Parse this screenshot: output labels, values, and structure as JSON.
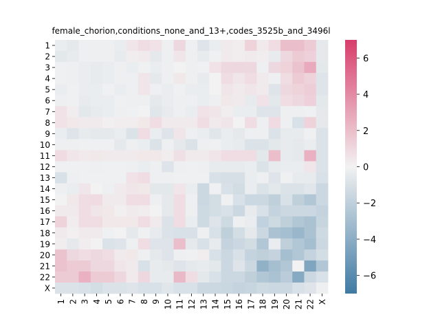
{
  "chart_data": {
    "type": "heatmap",
    "title": "female_chorion,conditions_none_and_13+,codes_3525b_and_3496l",
    "row_labels": [
      "1",
      "2",
      "3",
      "4",
      "5",
      "6",
      "7",
      "8",
      "9",
      "10",
      "11",
      "12",
      "13",
      "14",
      "15",
      "16",
      "17",
      "18",
      "19",
      "20",
      "21",
      "22",
      "X"
    ],
    "col_labels": [
      "1",
      "2",
      "3",
      "4",
      "5",
      "6",
      "7",
      "8",
      "9",
      "10",
      "11",
      "12",
      "13",
      "14",
      "15",
      "16",
      "17",
      "18",
      "19",
      "20",
      "21",
      "22",
      "X"
    ],
    "colorbar": {
      "min": -7,
      "max": 7,
      "ticks": [
        -6,
        -4,
        -2,
        0,
        2,
        4,
        6
      ],
      "low_color": "#3f7aa3",
      "mid_color": "#f2f2f2",
      "high_color": "#d83d6b"
    },
    "values": [
      [
        -0.3,
        -0.5,
        -0.2,
        -0.2,
        -0.2,
        -0.3,
        0.5,
        0.8,
        0.6,
        -0.2,
        1.0,
        -0.2,
        -0.8,
        -0.3,
        0.3,
        0.2,
        1.2,
        0.3,
        0.8,
        2.0,
        2.0,
        1.5,
        -0.5
      ],
      [
        -0.6,
        -0.4,
        -0.2,
        -0.2,
        -0.2,
        -0.4,
        0.2,
        0.3,
        -0.5,
        -0.2,
        0.5,
        -0.2,
        -0.4,
        -0.1,
        0.3,
        0.2,
        0.3,
        0.2,
        -0.4,
        1.0,
        1.5,
        1.3,
        -0.5
      ],
      [
        -0.1,
        -0.2,
        -0.3,
        -0.4,
        -0.3,
        -0.2,
        -0.3,
        -0.1,
        -0.3,
        -0.2,
        0.0,
        -0.2,
        -0.1,
        0.6,
        1.0,
        1.0,
        1.0,
        -0.2,
        1.0,
        1.2,
        1.8,
        2.8,
        -0.6
      ],
      [
        -0.1,
        -0.2,
        -0.3,
        -0.4,
        -0.3,
        -0.2,
        -0.2,
        0.5,
        -0.5,
        -0.2,
        0.4,
        -0.2,
        -0.4,
        0.0,
        0.8,
        0.5,
        0.8,
        0.3,
        -0.2,
        0.8,
        1.5,
        1.2,
        -0.8
      ],
      [
        -0.3,
        -0.1,
        -0.3,
        -0.3,
        -0.1,
        -0.3,
        -0.2,
        0.5,
        -0.2,
        -0.3,
        -0.1,
        -0.3,
        -0.3,
        0.0,
        0.5,
        0.3,
        0.5,
        0.3,
        -0.8,
        1.0,
        1.2,
        1.4,
        -0.8
      ],
      [
        -0.2,
        -0.1,
        -0.4,
        -0.3,
        -0.3,
        -0.1,
        -0.2,
        -0.2,
        -0.5,
        -0.3,
        -0.2,
        -0.2,
        -0.3,
        -0.2,
        0.4,
        0.3,
        -0.4,
        0.6,
        -0.6,
        0.8,
        1.0,
        1.3,
        -0.6
      ],
      [
        0.6,
        0.2,
        -0.6,
        -0.4,
        -0.3,
        -0.2,
        -0.1,
        0.0,
        -0.7,
        -0.4,
        -0.2,
        -0.3,
        0.6,
        0.5,
        0.2,
        -0.3,
        -0.3,
        -0.8,
        -0.8,
        -0.2,
        -0.2,
        -0.1,
        -0.5
      ],
      [
        0.6,
        0.4,
        0.3,
        0.3,
        0.1,
        0.2,
        0.2,
        0.4,
        0.8,
        0.3,
        0.3,
        0.3,
        0.8,
        0.3,
        0.5,
        0.0,
        0.8,
        -0.2,
        0.9,
        -0.2,
        -1.0,
        1.2,
        -0.5
      ],
      [
        -0.3,
        -0.8,
        -0.4,
        -0.5,
        -0.5,
        -0.3,
        -0.9,
        0.8,
        -0.3,
        -0.8,
        0.5,
        -0.2,
        -0.3,
        -0.7,
        -0.3,
        -0.5,
        -0.2,
        -0.2,
        -0.9,
        -0.4,
        -0.4,
        -0.1,
        -0.9
      ],
      [
        -0.2,
        -0.2,
        -0.1,
        -0.1,
        -0.1,
        -0.5,
        -0.2,
        -0.3,
        -0.9,
        -0.2,
        -0.5,
        -0.9,
        -0.2,
        -0.1,
        -0.3,
        -0.4,
        -0.9,
        -0.9,
        -0.6,
        -0.4,
        -0.5,
        -0.3,
        -0.9
      ],
      [
        0.9,
        0.5,
        0.3,
        0.4,
        0.3,
        0.3,
        0.3,
        0.4,
        0.4,
        0.2,
        0.7,
        0.3,
        0.3,
        0.5,
        0.8,
        0.8,
        0.8,
        -0.6,
        2.0,
        -0.4,
        -0.5,
        2.5,
        -0.9
      ],
      [
        -0.1,
        -0.1,
        -0.1,
        -0.2,
        -0.1,
        -0.1,
        -0.2,
        -0.3,
        -0.2,
        -0.8,
        -0.2,
        -0.1,
        -0.2,
        -0.4,
        -0.4,
        -0.4,
        -0.3,
        -0.9,
        -0.4,
        -0.3,
        -0.3,
        0.5,
        -0.9
      ],
      [
        -1.0,
        -0.2,
        -0.1,
        -0.1,
        -0.1,
        -0.1,
        0.6,
        0.8,
        -0.2,
        -0.2,
        -0.1,
        -0.1,
        -0.1,
        -1.0,
        -1.1,
        -1.1,
        -0.3,
        -0.2,
        -0.8,
        -0.1,
        -0.4,
        -0.4,
        -1.0
      ],
      [
        -0.2,
        -0.3,
        0.5,
        0.0,
        -0.2,
        0.3,
        0.5,
        0.4,
        -0.6,
        -0.6,
        0.5,
        -0.3,
        -1.5,
        -0.1,
        -1.0,
        -1.3,
        -0.3,
        -0.9,
        -0.6,
        -0.9,
        -0.9,
        -0.7,
        -1.5
      ],
      [
        0.0,
        0.4,
        0.8,
        0.9,
        0.3,
        0.3,
        0.8,
        0.8,
        -0.2,
        -0.5,
        0.8,
        -0.2,
        -1.5,
        -1.2,
        -0.1,
        -1.0,
        -1.5,
        -1.5,
        -2.0,
        -1.0,
        -2.0,
        -2.5,
        -1.5
      ],
      [
        0.3,
        0.3,
        0.8,
        0.5,
        0.4,
        0.1,
        0.3,
        0.2,
        0.0,
        -0.5,
        0.8,
        -0.2,
        -1.4,
        -1.2,
        -1.0,
        -1.5,
        -0.4,
        -1.0,
        -1.8,
        -1.5,
        -1.5,
        -1.5,
        -1.8
      ],
      [
        1.2,
        0.2,
        0.8,
        0.8,
        0.4,
        0.4,
        0.4,
        0.8,
        0.3,
        -0.9,
        0.8,
        -0.3,
        -1.4,
        -0.8,
        -1.4,
        -0.2,
        -0.3,
        -1.9,
        -1.4,
        -2.0,
        -2.5,
        -2.8,
        -1.7
      ],
      [
        0.3,
        0.1,
        0.3,
        0.3,
        -0.1,
        0.0,
        -0.5,
        -0.1,
        -0.4,
        -0.9,
        -1.0,
        -1.0,
        -0.2,
        -1.0,
        -2.0,
        -1.2,
        -0.5,
        -1.5,
        -2.8,
        -3.0,
        -3.5,
        -2.8,
        -1.4
      ],
      [
        0.2,
        -0.5,
        0.2,
        0.0,
        -0.9,
        -0.8,
        -0.2,
        0.8,
        -0.8,
        -0.8,
        2.0,
        -0.5,
        -1.0,
        -0.4,
        -1.8,
        -1.5,
        -1.3,
        -2.5,
        -0.3,
        -2.0,
        -2.5,
        -3.0,
        -1.5
      ],
      [
        1.8,
        1.0,
        0.8,
        1.0,
        0.8,
        0.3,
        0.4,
        -0.2,
        -0.5,
        -0.8,
        -0.2,
        -0.1,
        0.2,
        -1.0,
        -1.5,
        -1.0,
        -1.8,
        -2.0,
        -1.8,
        -3.0,
        -2.5,
        -1.8,
        -1.2
      ],
      [
        1.8,
        1.5,
        1.5,
        1.0,
        1.0,
        0.5,
        0.3,
        -1.0,
        -0.4,
        -0.5,
        -0.8,
        -0.5,
        -0.4,
        -0.6,
        -1.5,
        -0.8,
        -1.5,
        -3.8,
        -3.0,
        -2.5,
        0.0,
        -4.5,
        -2.5
      ],
      [
        1.5,
        1.5,
        2.5,
        1.5,
        1.5,
        1.0,
        0.3,
        1.0,
        -0.4,
        -0.4,
        2.2,
        0.8,
        -0.6,
        -1.0,
        -1.5,
        -1.5,
        -2.0,
        -2.5,
        -2.8,
        -2.2,
        -4.2,
        -1.5,
        -1.0
      ],
      [
        -0.9,
        -0.9,
        -1.0,
        -1.2,
        -0.9,
        -0.9,
        -0.8,
        -1.0,
        -1.0,
        -0.7,
        -1.0,
        -1.0,
        -1.5,
        -1.5,
        -1.6,
        -1.8,
        -1.7,
        -1.4,
        -1.5,
        -1.5,
        -1.0,
        -0.8,
        -0.2
      ]
    ]
  }
}
